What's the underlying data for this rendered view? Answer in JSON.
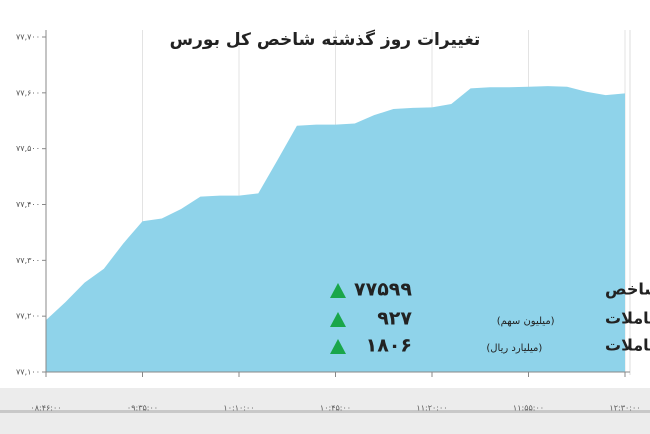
{
  "chart_data": {
    "type": "area",
    "title": "تغییرات روز گذشته شاخص کل بورس",
    "categories": [
      "۰۸:۴۶:۰۰",
      null,
      null,
      null,
      null,
      "۰۹:۳۵:۰۰",
      null,
      null,
      null,
      null,
      "۱۰:۱۰:۰۰",
      null,
      null,
      null,
      null,
      "۱۰:۴۵:۰۰",
      null,
      null,
      null,
      null,
      "۱۱:۲۰:۰۰",
      null,
      null,
      null,
      null,
      "۱۱:۵۵:۰۰",
      null,
      null,
      null,
      null,
      "۱۲:۳۰:۰۰"
    ],
    "values": [
      77193,
      77225,
      77260,
      77285,
      77330,
      77370,
      77375,
      77392,
      77414,
      77416,
      77416,
      77420,
      77480,
      77541,
      77543,
      77543,
      77545,
      77560,
      77571,
      77573,
      77574,
      77580,
      77608,
      77610,
      77610,
      77611,
      77612,
      77611,
      77602,
      77596,
      77599
    ],
    "color": "#8fd3ea",
    "ylim": [
      77100,
      77700
    ],
    "yticks": [
      {
        "value": 77100,
        "label": "۷۷,۱۰۰"
      },
      {
        "value": 77200,
        "label": "۷۷,۲۰۰"
      },
      {
        "value": 77300,
        "label": "۷۷,۳۰۰"
      },
      {
        "value": 77400,
        "label": "۷۷,۴۰۰"
      },
      {
        "value": 77500,
        "label": "۷۷,۵۰۰"
      },
      {
        "value": 77600,
        "label": "۷۷,۶۰۰"
      },
      {
        "value": 77700,
        "label": "۷۷,۷۰۰"
      }
    ],
    "grid": true,
    "stats": [
      {
        "label": "شاخص",
        "value": "۷۷۵۹۹"
      },
      {
        "label": "حجم معاملات",
        "unit": "(میلیون سهم)",
        "value": "۹۲۷"
      },
      {
        "label": "ارزش معاملات",
        "unit": "(میلیارد ریال)",
        "value": "۱۸۰۶"
      }
    ]
  }
}
